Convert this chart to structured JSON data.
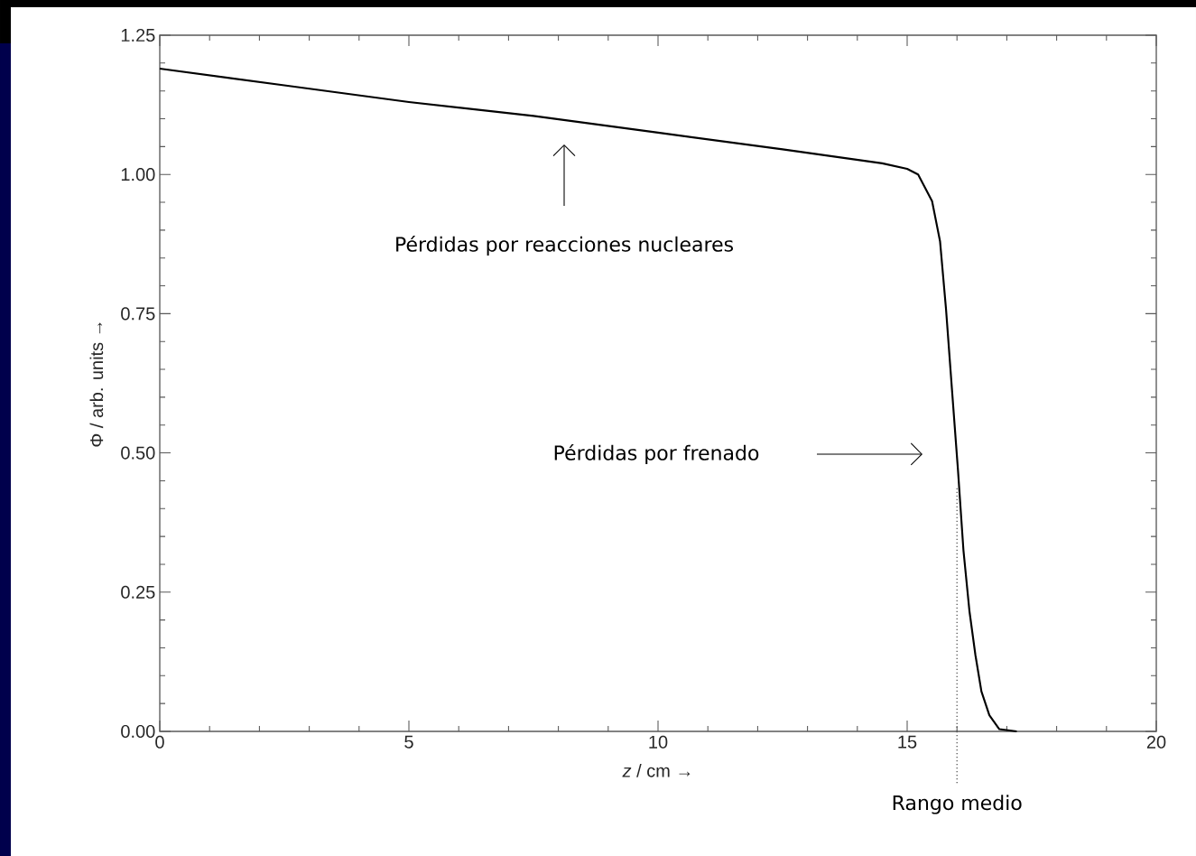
{
  "chart_data": {
    "type": "line",
    "xlabel": "*z*  /  cm  →",
    "ylabel": "Φ  /  arb. units  →",
    "x": [
      0,
      2.5,
      5,
      7.5,
      10,
      12.5,
      14.5,
      15,
      15.22,
      15.5,
      15.66,
      15.78,
      15.9,
      16.02,
      16.13,
      16.25,
      16.37,
      16.49,
      16.65,
      16.85,
      17.2
    ],
    "series": [
      {
        "color": "#000000",
        "values": [
          1.19,
          1.16,
          1.13,
          1.105,
          1.075,
          1.045,
          1.02,
          1.01,
          1.0,
          0.952,
          0.88,
          0.758,
          0.613,
          0.469,
          0.325,
          0.216,
          0.137,
          0.072,
          0.029,
          0.004,
          0
        ]
      }
    ],
    "xlim": [
      0,
      20
    ],
    "ylim": [
      0,
      1.25
    ],
    "xticks": [
      0,
      5,
      10,
      15,
      20
    ],
    "yticks": [
      {
        "value": 0,
        "label": "0.00"
      },
      {
        "value": 0.25,
        "label": "0.25"
      },
      {
        "value": 0.5,
        "label": "0.50"
      },
      {
        "value": 0.75,
        "label": "0.75"
      },
      {
        "value": 1,
        "label": "1.00"
      },
      {
        "value": 1.25,
        "label": "1.25"
      }
    ],
    "grid": false,
    "line_style": "solid",
    "marker": "none",
    "ref_lines": [
      {
        "axis": "x",
        "value": 16,
        "label": "Rango medio",
        "line_style": "dotted"
      }
    ],
    "annotations": [
      "Pérdidas por reacciones nucleares",
      "Pérdidas por frenado"
    ]
  }
}
